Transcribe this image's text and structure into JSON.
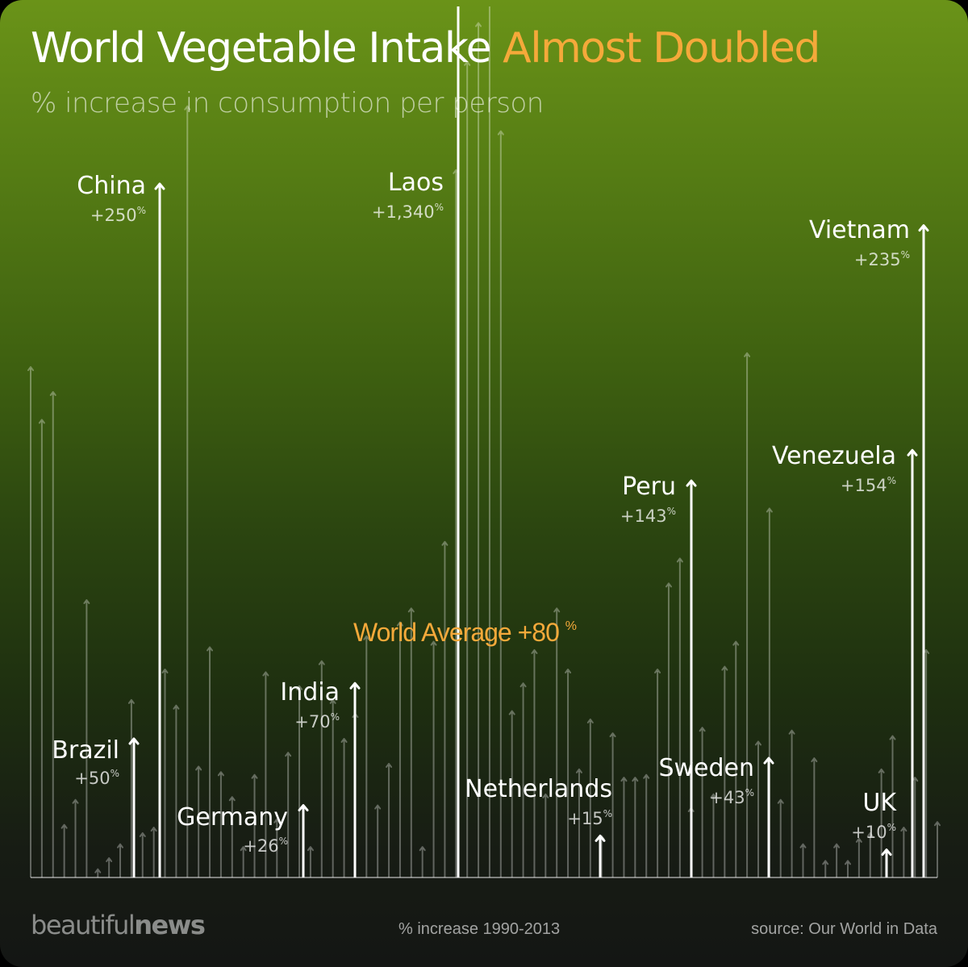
{
  "header": {
    "title_main": "World Vegetable Intake",
    "title_highlight": "Almost Doubled",
    "subtitle": "% increase in consumption per person"
  },
  "footer": {
    "logo_light": "beautiful",
    "logo_bold": "news",
    "x_note": "% increase 1990-2013",
    "source": "source: Our World in Data"
  },
  "colors": {
    "accent": "#f5a93a",
    "average_line_start": "#d9661a",
    "average_line_end": "#f0c040",
    "highlight_arrow": "#ffffff",
    "background_arrow": "rgba(255,255,255,0.32)"
  },
  "chart_data": {
    "type": "bar",
    "style": "arrow-columns",
    "ylim": [
      0,
      280
    ],
    "ylim_note": "Laos arrow extends beyond the top of the chart",
    "average": {
      "label": "World Average",
      "value_text": "+80",
      "unit": "%",
      "value": 80
    },
    "highlighted": [
      {
        "name": "Brazil",
        "value": 50,
        "value_text": "+50",
        "unit": "%"
      },
      {
        "name": "China",
        "value": 250,
        "value_text": "+250",
        "unit": "%"
      },
      {
        "name": "Germany",
        "value": 26,
        "value_text": "+26",
        "unit": "%"
      },
      {
        "name": "India",
        "value": 70,
        "value_text": "+70",
        "unit": "%"
      },
      {
        "name": "Laos",
        "value": 1340,
        "value_text": "+1,340",
        "unit": "%"
      },
      {
        "name": "Netherlands",
        "value": 15,
        "value_text": "+15",
        "unit": "%"
      },
      {
        "name": "Peru",
        "value": 143,
        "value_text": "+143",
        "unit": "%"
      },
      {
        "name": "Sweden",
        "value": 43,
        "value_text": "+43",
        "unit": "%"
      },
      {
        "name": "UK",
        "value": 10,
        "value_text": "+10",
        "unit": "%"
      },
      {
        "name": "Venezuela",
        "value": 154,
        "value_text": "+154",
        "unit": "%"
      },
      {
        "name": "Vietnam",
        "value": 235,
        "value_text": "+235",
        "unit": "%"
      }
    ],
    "other_countries_values": [
      184,
      165,
      175,
      19,
      28,
      100,
      3,
      7,
      12,
      64,
      16,
      18,
      75,
      62,
      278,
      40,
      83,
      38,
      29,
      11,
      37,
      74,
      21,
      45,
      69,
      11,
      78,
      64,
      50,
      59,
      87,
      26,
      41,
      92,
      97,
      11,
      85,
      121,
      255,
      294,
      308,
      330,
      269,
      60,
      70,
      82,
      30,
      97,
      75,
      39,
      57,
      15,
      52,
      36,
      36,
      37,
      75,
      106,
      115,
      25,
      54,
      30,
      76,
      85,
      189,
      49,
      133,
      28,
      53,
      12,
      43,
      6,
      12,
      6,
      14,
      16,
      39,
      51,
      18,
      36,
      82,
      20
    ]
  }
}
